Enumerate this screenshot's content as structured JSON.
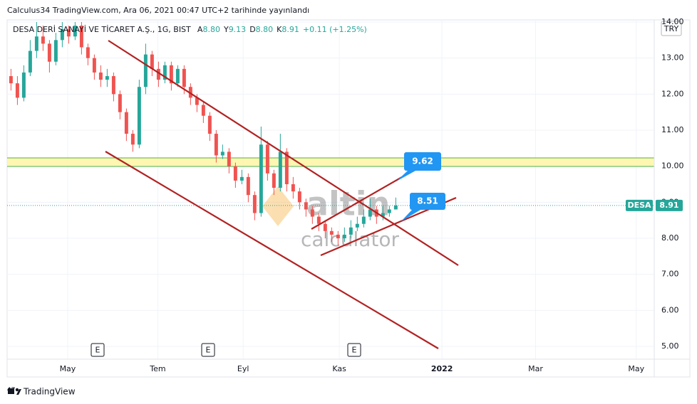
{
  "header": "Calculus34 TradingView.com, Ara 06, 2021 00:47 UTC+2 tarihinde yayınlandı",
  "footer": "TradingView",
  "chart_data": {
    "type": "candlestick",
    "symbol_title": "DESA DERİ SANAYİ VE TİCARET A.Ş., 1G, BIST",
    "legend_values": [
      {
        "key": "A",
        "text": "8.80"
      },
      {
        "key": "Y",
        "text": "9.13"
      },
      {
        "key": "D",
        "text": "8.80"
      },
      {
        "key": "K",
        "text": "8.91"
      }
    ],
    "change": "+0.11 (+1.25%)",
    "currency": "TRY",
    "ticker": "DESA",
    "last_price": {
      "value": 8.91,
      "label": "8.91"
    },
    "annotations": [
      {
        "text": "9.62"
      },
      {
        "text": "8.51"
      }
    ],
    "watermark": [
      "altin",
      "calculator"
    ],
    "events": [
      "E",
      "E",
      "E"
    ],
    "up_color": "#26a69a",
    "down_color": "#ef5350",
    "x": [
      0,
      1,
      2,
      3,
      4,
      5,
      6,
      7,
      8,
      9,
      10,
      11,
      12,
      13,
      14,
      15,
      16,
      17,
      18,
      19,
      20,
      21,
      22,
      23,
      24,
      25,
      26,
      27,
      28,
      29,
      30,
      31,
      32,
      33,
      34,
      35,
      36,
      37,
      38,
      39,
      40,
      41,
      42,
      43,
      44,
      45,
      46,
      47,
      48,
      49,
      50,
      51,
      52,
      53,
      54,
      55,
      56,
      57,
      58,
      59,
      60
    ],
    "open": [
      12.5,
      12.3,
      11.9,
      12.6,
      13.2,
      13.6,
      13.4,
      12.9,
      13.5,
      13.8,
      13.6,
      13.9,
      13.3,
      13.0,
      12.6,
      12.4,
      12.5,
      12.0,
      11.5,
      10.9,
      10.6,
      12.2,
      13.1,
      12.7,
      12.4,
      12.8,
      12.3,
      12.7,
      12.2,
      11.9,
      11.7,
      11.4,
      10.9,
      10.3,
      10.4,
      10.0,
      9.6,
      9.7,
      9.2,
      8.7,
      10.6,
      9.8,
      9.4,
      10.4,
      9.5,
      9.3,
      9.0,
      8.8,
      8.6,
      8.4,
      8.2,
      8.1,
      8.0,
      8.1,
      8.3,
      8.4,
      8.6,
      8.8,
      8.6,
      8.7,
      8.8
    ],
    "high": [
      12.7,
      12.5,
      12.8,
      13.5,
      14.0,
      13.9,
      13.5,
      13.7,
      14.0,
      13.9,
      14.0,
      14.0,
      13.4,
      13.1,
      12.8,
      12.7,
      12.6,
      12.1,
      11.6,
      11.0,
      12.4,
      13.4,
      13.2,
      12.9,
      12.9,
      12.9,
      12.8,
      12.8,
      12.3,
      12.0,
      11.8,
      11.5,
      11.0,
      10.6,
      10.5,
      10.1,
      9.9,
      9.8,
      9.3,
      11.1,
      10.7,
      9.9,
      10.9,
      10.5,
      9.7,
      9.4,
      9.1,
      8.9,
      8.7,
      8.5,
      8.3,
      8.2,
      8.3,
      8.5,
      8.6,
      8.8,
      9.1,
      8.9,
      8.9,
      8.9,
      9.13
    ],
    "low": [
      12.1,
      11.7,
      11.8,
      12.5,
      13.0,
      13.2,
      12.6,
      12.8,
      13.3,
      13.4,
      13.5,
      13.1,
      12.8,
      12.4,
      12.2,
      12.2,
      11.8,
      11.3,
      10.7,
      10.4,
      10.5,
      12.0,
      12.5,
      12.2,
      12.3,
      12.1,
      12.2,
      12.0,
      11.7,
      11.5,
      11.2,
      10.7,
      10.1,
      10.2,
      9.8,
      9.4,
      9.5,
      9.0,
      8.5,
      8.6,
      9.6,
      9.2,
      9.3,
      9.3,
      9.1,
      8.8,
      8.6,
      8.4,
      8.2,
      8.0,
      7.9,
      7.8,
      7.9,
      8.0,
      8.2,
      8.3,
      8.5,
      8.4,
      8.5,
      8.6,
      8.8
    ],
    "close": [
      12.3,
      11.9,
      12.6,
      13.2,
      13.6,
      13.4,
      12.9,
      13.5,
      13.8,
      13.6,
      13.9,
      13.3,
      13.0,
      12.6,
      12.4,
      12.5,
      12.0,
      11.5,
      10.9,
      10.6,
      12.2,
      13.1,
      12.7,
      12.4,
      12.8,
      12.3,
      12.7,
      12.2,
      11.9,
      11.7,
      11.4,
      10.9,
      10.3,
      10.4,
      10.0,
      9.6,
      9.7,
      9.2,
      8.7,
      10.6,
      9.8,
      9.4,
      10.4,
      9.5,
      9.3,
      9.0,
      8.8,
      8.6,
      8.4,
      8.2,
      8.1,
      8.0,
      8.1,
      8.3,
      8.4,
      8.6,
      8.8,
      8.6,
      8.7,
      8.8,
      8.91
    ],
    "xlim": [
      -0.6,
      100.3
    ],
    "xticks": [
      {
        "value": 8.84,
        "label": "May"
      },
      {
        "value": 22.9,
        "label": "Tem"
      },
      {
        "value": 36.2,
        "label": "Eyl"
      },
      {
        "value": 51.2,
        "label": "Kas"
      },
      {
        "value": 67.2,
        "label": "2022"
      },
      {
        "value": 81.8,
        "label": "Mar"
      },
      {
        "value": 97.5,
        "label": "May"
      }
    ],
    "ylim": [
      4.645,
      14.059
    ],
    "yticks": [
      {
        "value": 5,
        "label": "5.00"
      },
      {
        "value": 6,
        "label": "6.00"
      },
      {
        "value": 7,
        "label": "7.00"
      },
      {
        "value": 8,
        "label": "8.00"
      },
      {
        "value": 9,
        "label": "9.00"
      },
      {
        "value": 10,
        "label": "10.00"
      },
      {
        "value": 11,
        "label": "11.00"
      },
      {
        "value": 12,
        "label": "12.00"
      },
      {
        "value": 13,
        "label": "13.00"
      },
      {
        "value": 14,
        "label": "14.00"
      }
    ],
    "grid": true
  }
}
